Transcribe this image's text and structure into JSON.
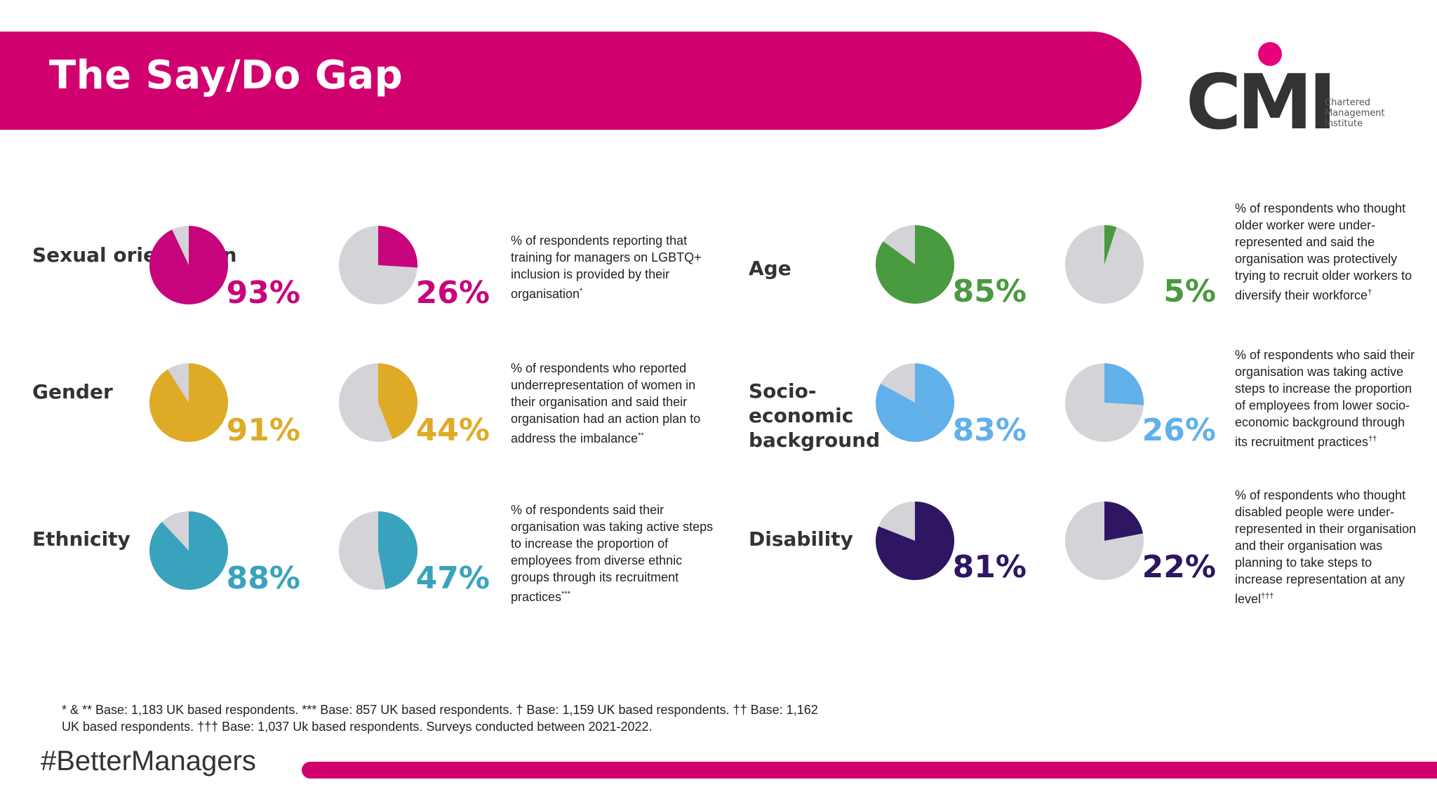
{
  "header": {
    "title": "The Say/Do Gap"
  },
  "logo": {
    "wordmark": "CMI",
    "line1": "Chartered",
    "line2": "Management",
    "line3": "Institute"
  },
  "colors": {
    "brand": "#d1006f",
    "pie_bg": "#d3d3d8"
  },
  "chart_data": [
    {
      "type": "pie",
      "category": "Sexual orientation",
      "color": "#c8047c",
      "values": [
        93,
        26
      ],
      "labels": [
        "93%",
        "26%"
      ],
      "description": "% of respondents reporting that training for managers on LGBTQ+ inclusion is provided by their organisation",
      "marker": "*"
    },
    {
      "type": "pie",
      "category": "Gender",
      "color": "#dfab27",
      "values": [
        91,
        44
      ],
      "labels": [
        "91%",
        "44%"
      ],
      "description": "% of respondents who reported underrepresentation of women in their organisation and said their organisation had an action plan to address the imbalance",
      "marker": "**"
    },
    {
      "type": "pie",
      "category": "Ethnicity",
      "color": "#39a3bd",
      "values": [
        88,
        47
      ],
      "labels": [
        "88%",
        "47%"
      ],
      "description": "% of respondents said their organisation was taking active steps to increase the proportion of employees from diverse ethnic groups through its recruitment practices",
      "marker": "***"
    },
    {
      "type": "pie",
      "category": "Age",
      "color": "#4a9a3f",
      "values": [
        85,
        5
      ],
      "labels": [
        "85%",
        "5%"
      ],
      "description": "% of respondents who thought older worker were under-represented and said the organisation was protectively trying to recruit older workers to diversify their workforce",
      "marker": "†"
    },
    {
      "type": "pie",
      "category": "Socio-economic background",
      "color": "#61b0ea",
      "values": [
        83,
        26
      ],
      "labels": [
        "83%",
        "26%"
      ],
      "description": "% of respondents who said their organisation was taking active steps to increase the proportion of employees from lower socio-economic background through its recruitment practices",
      "marker": "††"
    },
    {
      "type": "pie",
      "category": "Disability",
      "color": "#2e1662",
      "values": [
        81,
        22
      ],
      "labels": [
        "81%",
        "22%"
      ],
      "description": "% of respondents who thought disabled people were under-represented in their organisation and their organisation was planning to take steps to increase representation at any level",
      "marker": "†††"
    }
  ],
  "footnote": "* & ** Base: 1,183 UK based respondents. *** Base: 857 UK based respondents. † Base: 1,159 UK based respondents. †† Base: 1,162 UK based respondents. ††† Base: 1,037 Uk based respondents.  Surveys conducted between 2021-2022.",
  "hashtag": "#BetterManagers"
}
